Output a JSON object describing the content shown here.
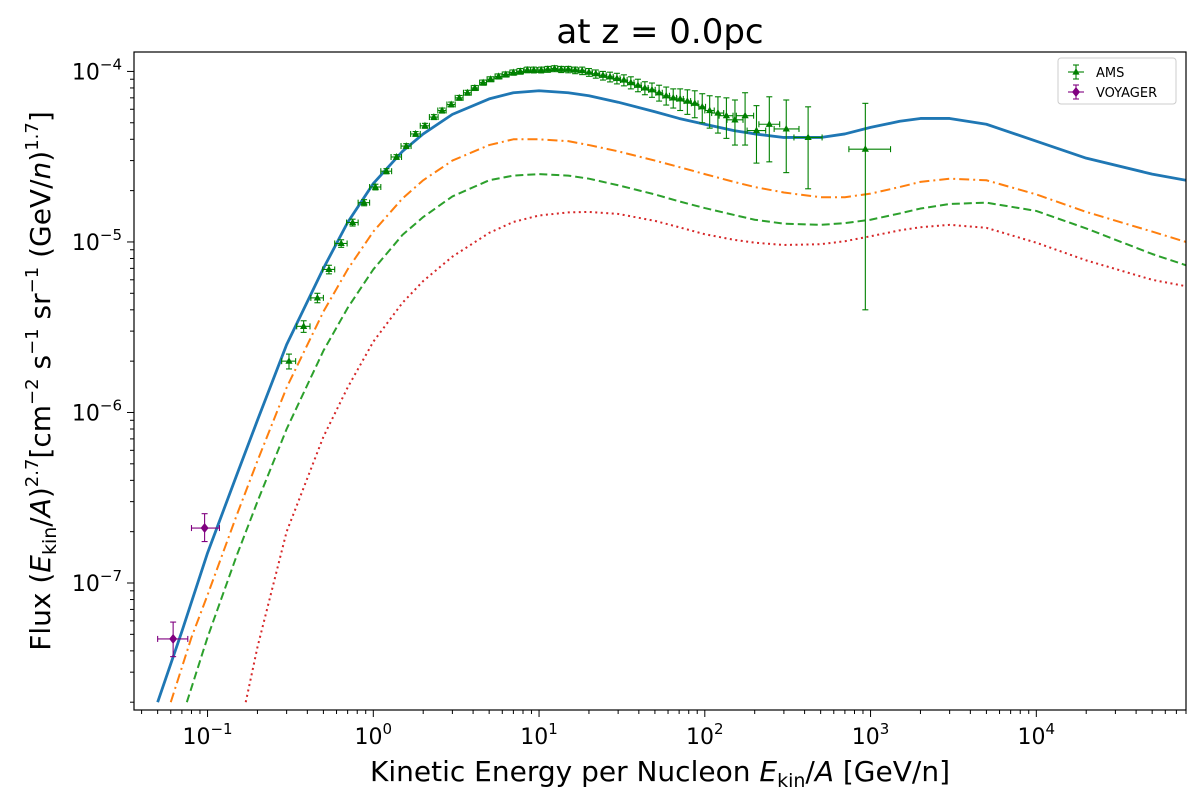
{
  "chart_data": {
    "type": "line",
    "title": "at z = 0.0pc",
    "xlabel_parts": [
      "Kinetic Energy per Nucleon ",
      "E",
      "kin",
      "/",
      "A",
      " [GeV/n]"
    ],
    "ylabel_parts": [
      "Flux (",
      "E",
      "kin",
      "/",
      "A",
      ")",
      "2.7",
      "[cm",
      "−2",
      " s",
      "−1",
      " sr",
      "−1",
      " (GeV/",
      "n",
      ")",
      "1.7",
      "]"
    ],
    "xscale": "log",
    "yscale": "log",
    "xlim": [
      0.036,
      80000
    ],
    "ylim": [
      1.8e-08,
      0.00013
    ],
    "grid": false,
    "legend_position": "top-right",
    "x_ticks": [
      {
        "value": 0.1,
        "base": "10",
        "exp": "−1"
      },
      {
        "value": 1,
        "base": "10",
        "exp": "0"
      },
      {
        "value": 10,
        "base": "10",
        "exp": "1"
      },
      {
        "value": 100,
        "base": "10",
        "exp": "2"
      },
      {
        "value": 1000,
        "base": "10",
        "exp": "3"
      },
      {
        "value": 10000,
        "base": "10",
        "exp": "4"
      }
    ],
    "y_ticks": [
      {
        "value": 1e-07,
        "base": "10",
        "exp": "−7"
      },
      {
        "value": 1e-06,
        "base": "10",
        "exp": "−6"
      },
      {
        "value": 1e-05,
        "base": "10",
        "exp": "−5"
      },
      {
        "value": 0.0001,
        "base": "10",
        "exp": "−4"
      }
    ],
    "lines": [
      {
        "color": "#1f77b4",
        "style": "solid",
        "width": 2.8,
        "x": [
          0.05,
          0.07,
          0.1,
          0.15,
          0.2,
          0.3,
          0.5,
          0.7,
          1,
          1.5,
          2,
          3,
          5,
          7,
          10,
          15,
          20,
          30,
          50,
          70,
          100,
          150,
          200,
          300,
          500,
          700,
          1000,
          1500,
          2000,
          3000,
          5000,
          10000,
          20000,
          50000,
          80000
        ],
        "y": [
          2e-08,
          5.2e-08,
          1.5e-07,
          4.3e-07,
          9e-07,
          2.5e-06,
          7e-06,
          1.3e-05,
          2.2e-05,
          3.4e-05,
          4.3e-05,
          5.6e-05,
          6.9e-05,
          7.5e-05,
          7.7e-05,
          7.5e-05,
          7.2e-05,
          6.6e-05,
          5.8e-05,
          5.3e-05,
          4.9e-05,
          4.5e-05,
          4.3e-05,
          4.1e-05,
          4.1e-05,
          4.3e-05,
          4.7e-05,
          5.1e-05,
          5.3e-05,
          5.3e-05,
          4.9e-05,
          3.9e-05,
          3.1e-05,
          2.5e-05,
          2.3e-05
        ]
      },
      {
        "color": "#ff7f0e",
        "style": "dashdot",
        "width": 2,
        "x": [
          0.06,
          0.08,
          0.1,
          0.15,
          0.2,
          0.3,
          0.5,
          0.7,
          1,
          1.5,
          2,
          3,
          5,
          7,
          10,
          15,
          20,
          30,
          50,
          70,
          100,
          150,
          200,
          300,
          500,
          700,
          1000,
          1500,
          2000,
          3000,
          5000,
          10000,
          20000,
          50000,
          80000
        ],
        "y": [
          2e-08,
          4.8e-08,
          8.5e-08,
          2.5e-07,
          5.2e-07,
          1.4e-06,
          3.9e-06,
          6.9e-06,
          1.15e-05,
          1.8e-05,
          2.3e-05,
          3e-05,
          3.7e-05,
          4e-05,
          4e-05,
          3.9e-05,
          3.7e-05,
          3.4e-05,
          3e-05,
          2.75e-05,
          2.5e-05,
          2.25e-05,
          2.1e-05,
          1.95e-05,
          1.83e-05,
          1.83e-05,
          1.92e-05,
          2.1e-05,
          2.25e-05,
          2.35e-05,
          2.3e-05,
          1.9e-05,
          1.5e-05,
          1.15e-05,
          1e-05
        ]
      },
      {
        "color": "#2ca02c",
        "style": "dashed",
        "width": 2,
        "x": [
          0.075,
          0.1,
          0.15,
          0.2,
          0.3,
          0.5,
          0.7,
          1,
          1.5,
          2,
          3,
          5,
          7,
          10,
          15,
          20,
          30,
          50,
          70,
          100,
          150,
          200,
          300,
          500,
          700,
          1000,
          1500,
          2000,
          3000,
          5000,
          10000,
          20000,
          50000,
          80000
        ],
        "y": [
          2e-08,
          4.8e-08,
          1.45e-07,
          3e-07,
          8e-07,
          2.3e-06,
          4.1e-06,
          6.9e-06,
          1.1e-05,
          1.4e-05,
          1.85e-05,
          2.3e-05,
          2.45e-05,
          2.5e-05,
          2.45e-05,
          2.35e-05,
          2.15e-05,
          1.9e-05,
          1.73e-05,
          1.58e-05,
          1.44e-05,
          1.35e-05,
          1.28e-05,
          1.26e-05,
          1.29e-05,
          1.35e-05,
          1.47e-05,
          1.57e-05,
          1.67e-05,
          1.7e-05,
          1.52e-05,
          1.2e-05,
          8.5e-06,
          7.3e-06
        ]
      },
      {
        "color": "#d62728",
        "style": "dotted",
        "width": 2,
        "x": [
          0.17,
          0.2,
          0.3,
          0.5,
          0.7,
          1,
          1.5,
          2,
          3,
          5,
          7,
          10,
          15,
          20,
          30,
          50,
          70,
          100,
          150,
          200,
          300,
          500,
          700,
          1000,
          1500,
          2000,
          3000,
          5000,
          10000,
          20000,
          50000,
          80000
        ],
        "y": [
          2e-08,
          4.2e-08,
          2e-07,
          7.2e-07,
          1.4e-06,
          2.6e-06,
          4.4e-06,
          5.9e-06,
          8.2e-06,
          1.13e-05,
          1.31e-05,
          1.43e-05,
          1.49e-05,
          1.5e-05,
          1.46e-05,
          1.33e-05,
          1.22e-05,
          1.11e-05,
          1.03e-05,
          9.9e-06,
          9.6e-06,
          9.7e-06,
          1.01e-05,
          1.08e-05,
          1.17e-05,
          1.22e-05,
          1.26e-05,
          1.21e-05,
          9.9e-06,
          7.8e-06,
          6e-06,
          5.5e-06
        ]
      }
    ],
    "series": [
      {
        "name": "AMS",
        "color": "#008000",
        "marker": "triangle",
        "x": [
          0.31,
          0.38,
          0.46,
          0.54,
          0.64,
          0.75,
          0.88,
          1.03,
          1.2,
          1.38,
          1.58,
          1.8,
          2.05,
          2.32,
          2.6,
          2.95,
          3.3,
          3.7,
          4.1,
          4.6,
          5.1,
          5.7,
          6.3,
          7.0,
          7.7,
          8.5,
          9.3,
          10.3,
          11.3,
          12.4,
          13.6,
          15.0,
          16.5,
          18.2,
          20.0,
          22.0,
          24.3,
          26.8,
          29.5,
          32.5,
          35.8,
          39.5,
          43.5,
          48.0,
          53.0,
          58.5,
          64.5,
          71.0,
          78.5,
          87.0,
          96.5,
          107,
          120,
          135,
          152,
          175,
          205,
          245,
          310,
          420,
          930
        ],
        "y": [
          2e-06,
          3.2e-06,
          4.7e-06,
          6.9e-06,
          9.8e-06,
          1.3e-05,
          1.7e-05,
          2.1e-05,
          2.6e-05,
          3.15e-05,
          3.65e-05,
          4.3e-05,
          4.8e-05,
          5.4e-05,
          5.9e-05,
          6.4e-05,
          7e-05,
          7.5e-05,
          8e-05,
          8.6e-05,
          9e-05,
          9.35e-05,
          9.6e-05,
          9.85e-05,
          0.0001,
          0.000102,
          0.000102,
          0.000102,
          0.000103,
          0.000104,
          0.000103,
          0.000103,
          0.000102,
          0.000101,
          9.9e-05,
          9.7e-05,
          9.5e-05,
          9.3e-05,
          9.1e-05,
          8.9e-05,
          8.6e-05,
          8.3e-05,
          8e-05,
          7.8e-05,
          7.5e-05,
          7.2e-05,
          7e-05,
          6.9e-05,
          6.7e-05,
          6.5e-05,
          6.2e-05,
          5.9e-05,
          5.7e-05,
          5.5e-05,
          5.2e-05,
          5.5e-05,
          4.5e-05,
          4.9e-05,
          4.6e-05,
          4.1e-05,
          3.5e-05
        ],
        "yerr_low": [
          1.8e-06,
          2.95e-06,
          4.4e-06,
          6.5e-06,
          9.3e-06,
          1.24e-05,
          1.63e-05,
          2.02e-05,
          2.51e-05,
          3.05e-05,
          3.53e-05,
          4.16e-05,
          4.64e-05,
          5.22e-05,
          5.7e-05,
          6.19e-05,
          6.77e-05,
          7.25e-05,
          7.73e-05,
          8.3e-05,
          8.7e-05,
          9.03e-05,
          9.27e-05,
          9.5e-05,
          9.63e-05,
          9.82e-05,
          9.8e-05,
          9.8e-05,
          9.88e-05,
          9.97e-05,
          9.85e-05,
          9.82e-05,
          9.7e-05,
          9.58e-05,
          9.36e-05,
          9.13e-05,
          8.9e-05,
          8.68e-05,
          8.45e-05,
          8.23e-05,
          7.9e-05,
          7.6e-05,
          7.3e-05,
          7.05e-05,
          6.7e-05,
          6.35e-05,
          6.1e-05,
          5.9e-05,
          5.6e-05,
          5.35e-05,
          5e-05,
          4.65e-05,
          4.35e-05,
          4.05e-05,
          3.7e-05,
          3.7e-05,
          2.9e-05,
          2.95e-05,
          2.55e-05,
          2.05e-05,
          4e-06
        ],
        "yerr_high": [
          2.2e-06,
          3.45e-06,
          5e-06,
          7.3e-06,
          1.03e-05,
          1.36e-05,
          1.77e-05,
          2.18e-05,
          2.69e-05,
          3.25e-05,
          3.77e-05,
          4.44e-05,
          4.96e-05,
          5.58e-05,
          6.1e-05,
          6.61e-05,
          7.23e-05,
          7.75e-05,
          8.27e-05,
          8.9e-05,
          9.3e-05,
          9.67e-05,
          9.93e-05,
          0.000102,
          0.000104,
          0.000106,
          0.000106,
          0.000106,
          0.000107,
          0.000108,
          0.000107,
          0.000107,
          0.000106,
          0.000106,
          0.000104,
          0.000102,
          0.0001,
          9.9e-05,
          9.75e-05,
          9.55e-05,
          9.3e-05,
          9e-05,
          8.7e-05,
          8.55e-05,
          8.3e-05,
          8.1e-05,
          7.9e-05,
          7.9e-05,
          7.8e-05,
          7.7e-05,
          7.4e-05,
          7.2e-05,
          7.1e-05,
          7e-05,
          6.8e-05,
          7.5e-05,
          6.3e-05,
          7.1e-05,
          6.8e-05,
          6.2e-05,
          6.5e-05
        ],
        "xerr_low": [
          0.28,
          0.345,
          0.42,
          0.495,
          0.585,
          0.69,
          0.81,
          0.95,
          1.11,
          1.28,
          1.47,
          1.68,
          1.92,
          2.18,
          2.45,
          2.78,
          3.12,
          3.5,
          3.9,
          4.38,
          4.86,
          5.43,
          6.0,
          6.67,
          7.35,
          8.12,
          8.9,
          9.85,
          10.8,
          11.85,
          13.0,
          14.35,
          15.8,
          17.4,
          19.1,
          21.0,
          23.2,
          25.6,
          28.2,
          31.0,
          34.2,
          37.7,
          41.5,
          45.8,
          50.6,
          55.8,
          61.5,
          67.8,
          74.9,
          83.0,
          92.1,
          100,
          110,
          122,
          136,
          155,
          180,
          212,
          262,
          345,
          740
        ],
        "xerr_high": [
          0.34,
          0.415,
          0.5,
          0.585,
          0.695,
          0.81,
          0.95,
          1.11,
          1.29,
          1.48,
          1.69,
          1.92,
          2.18,
          2.46,
          2.75,
          3.12,
          3.48,
          3.9,
          4.3,
          4.82,
          5.34,
          5.97,
          6.6,
          7.33,
          8.05,
          8.88,
          9.7,
          10.75,
          11.8,
          12.95,
          14.2,
          15.65,
          17.2,
          19.0,
          20.9,
          23.0,
          25.4,
          28.0,
          30.8,
          34.0,
          37.4,
          41.3,
          45.5,
          50.2,
          55.4,
          61.2,
          67.5,
          74.2,
          82.1,
          91.0,
          101,
          114,
          130,
          148,
          170,
          197,
          233,
          283,
          370,
          510,
          1320
        ]
      },
      {
        "name": "VOYAGER",
        "color": "#800080",
        "marker": "diamond",
        "x": [
          0.062,
          0.096
        ],
        "y": [
          4.7e-08,
          2.1e-07
        ],
        "yerr_low": [
          3.7e-08,
          1.75e-07
        ],
        "yerr_high": [
          5.9e-08,
          2.55e-07
        ],
        "xerr_low": [
          0.05,
          0.08
        ],
        "xerr_high": [
          0.076,
          0.118
        ]
      }
    ]
  }
}
